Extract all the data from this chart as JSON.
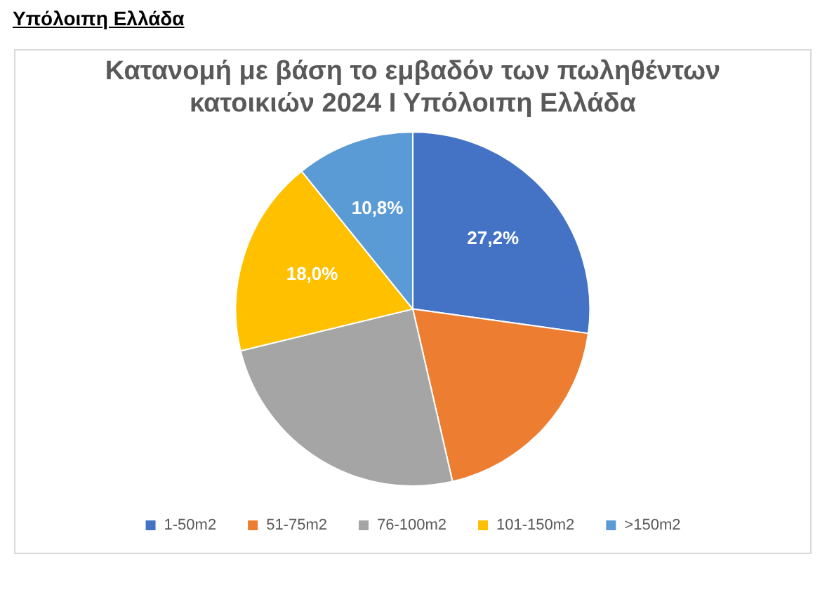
{
  "chart_data": {
    "type": "pie",
    "subtitle": "Υπόλοιπη Ελλάδα",
    "title": "Κατανομή με βάση το εμβαδόν των πωληθέντων κατοικιών 2024 Ι Υπόλοιπη Ελλάδα",
    "categories": [
      "1-50m2",
      "51-75m2",
      "76-100m2",
      "101-150m2",
      ">150m2"
    ],
    "values": [
      27.2,
      19.2,
      24.8,
      18.0,
      10.8
    ],
    "value_labels": [
      "27,2%",
      null,
      null,
      "18,0%",
      "10,8%"
    ],
    "colors": [
      "#4472c4",
      "#ed7d31",
      "#a5a5a5",
      "#ffc000",
      "#5b9bd5"
    ],
    "legend": "bottom"
  }
}
